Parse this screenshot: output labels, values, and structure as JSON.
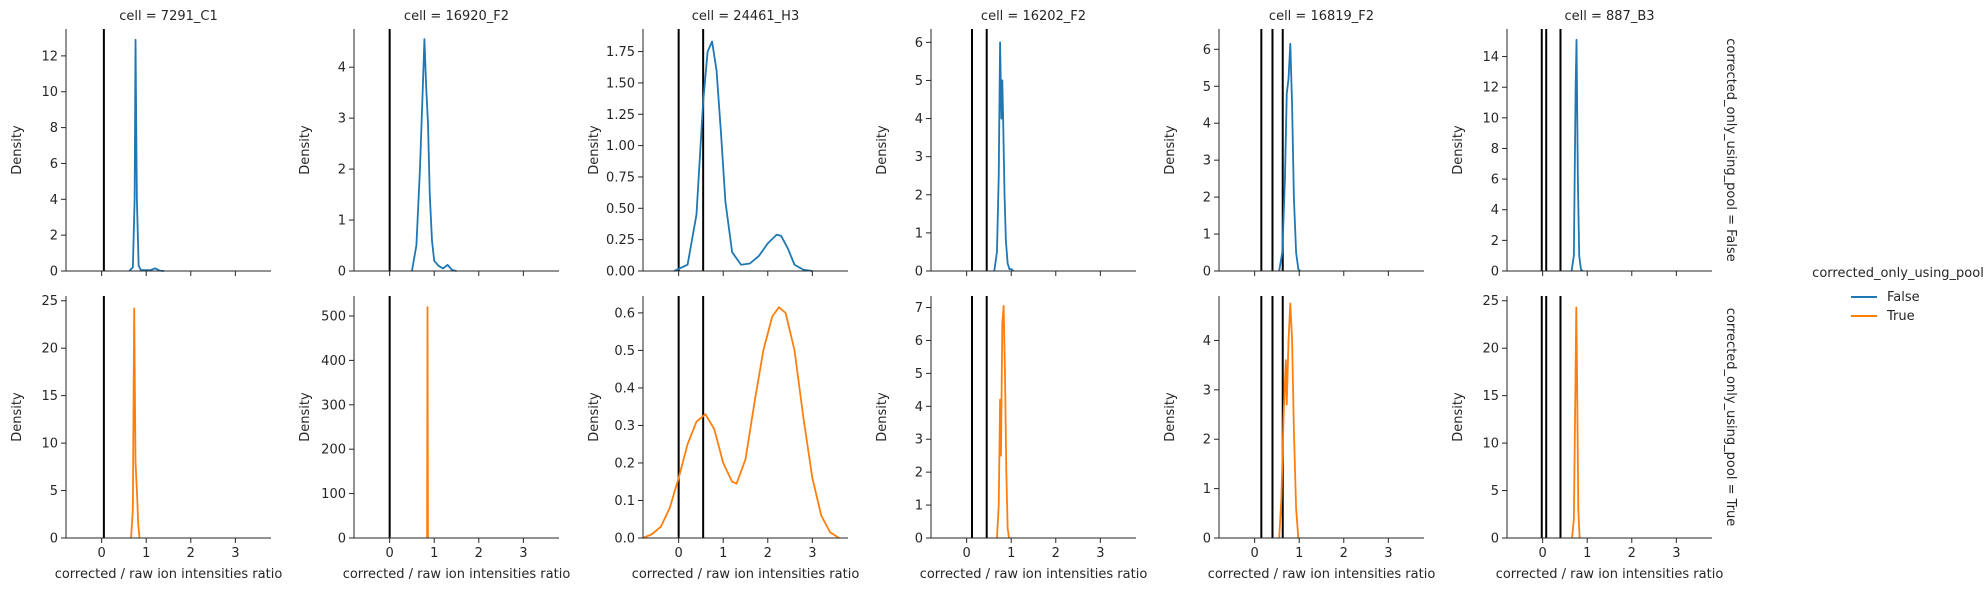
{
  "legend": {
    "title": "corrected_only_using_pool",
    "entries": [
      {
        "label": "False",
        "color": "#1f77b4"
      },
      {
        "label": "True",
        "color": "#ff7f0e"
      }
    ]
  },
  "row_labels": [
    "corrected_only_using_pool = False",
    "corrected_only_using_pool = True"
  ],
  "chart_data": [
    {
      "type": "line",
      "title": "cell = 7291_C1",
      "x_ticks": [
        "0",
        "1",
        "2",
        "3"
      ],
      "xlim": [
        -0.8,
        3.8
      ],
      "vlines": [
        0.05
      ],
      "panels": [
        {
          "ylabel": "Density",
          "ylim": [
            0,
            13.5
          ],
          "y_ticks": [
            0,
            2,
            4,
            6,
            8,
            10,
            12
          ],
          "y_tick_labels": [
            "0",
            "2",
            "4",
            "6",
            "8",
            "10",
            "12"
          ],
          "series": {
            "values": [
              [
                0.62,
                0
              ],
              [
                0.7,
                0.2
              ],
              [
                0.74,
                4
              ],
              [
                0.76,
                12.9
              ],
              [
                0.79,
                4
              ],
              [
                0.83,
                0.3
              ],
              [
                0.88,
                0.05
              ],
              [
                1.1,
                0.05
              ],
              [
                1.2,
                0.15
              ],
              [
                1.3,
                0.02
              ],
              [
                1.4,
                0
              ]
            ]
          }
        },
        {
          "ylabel": "Density",
          "ylim": [
            0,
            25.5
          ],
          "y_ticks": [
            0,
            5,
            10,
            15,
            20,
            25
          ],
          "y_tick_labels": [
            "0",
            "5",
            "10",
            "15",
            "20",
            "25"
          ],
          "series": {
            "values": [
              [
                0.66,
                0
              ],
              [
                0.7,
                3
              ],
              [
                0.73,
                24.2
              ],
              [
                0.76,
                8
              ],
              [
                0.78,
                6
              ],
              [
                0.8,
                4
              ],
              [
                0.82,
                1.5
              ],
              [
                0.85,
                0
              ]
            ]
          }
        }
      ]
    },
    {
      "type": "line",
      "title": "cell = 16920_F2",
      "x_ticks": [
        "0",
        "1",
        "2",
        "3"
      ],
      "xlim": [
        -0.8,
        3.8
      ],
      "vlines": [
        0.0
      ],
      "panels": [
        {
          "ylabel": "Density",
          "ylim": [
            0,
            4.75
          ],
          "y_ticks": [
            0,
            1,
            2,
            3,
            4
          ],
          "y_tick_labels": [
            "0",
            "1",
            "2",
            "3",
            "4"
          ],
          "series": {
            "values": [
              [
                0.5,
                0
              ],
              [
                0.6,
                0.5
              ],
              [
                0.68,
                2
              ],
              [
                0.74,
                3.5
              ],
              [
                0.78,
                4.55
              ],
              [
                0.82,
                3.6
              ],
              [
                0.86,
                2.9
              ],
              [
                0.9,
                1.5
              ],
              [
                0.95,
                0.6
              ],
              [
                1.0,
                0.2
              ],
              [
                1.1,
                0.1
              ],
              [
                1.2,
                0.05
              ],
              [
                1.3,
                0.12
              ],
              [
                1.4,
                0.02
              ],
              [
                1.5,
                0
              ]
            ]
          }
        },
        {
          "ylabel": "Density",
          "ylim": [
            0,
            545
          ],
          "y_ticks": [
            0,
            100,
            200,
            300,
            400,
            500
          ],
          "y_tick_labels": [
            "0",
            "100",
            "200",
            "300",
            "400",
            "500"
          ],
          "series": {
            "values": [
              [
                0.84,
                0
              ],
              [
                0.85,
                520
              ],
              [
                0.86,
                0
              ]
            ]
          }
        }
      ]
    },
    {
      "type": "line",
      "title": "cell = 24461_H3",
      "x_ticks": [
        "0",
        "1",
        "2",
        "3"
      ],
      "xlim": [
        -0.8,
        3.8
      ],
      "vlines": [
        0.0,
        0.55
      ],
      "panels": [
        {
          "ylabel": "Density",
          "ylim": [
            0,
            1.93
          ],
          "y_ticks": [
            0,
            0.25,
            0.5,
            0.75,
            1.0,
            1.25,
            1.5,
            1.75
          ],
          "y_tick_labels": [
            "0.00",
            "0.25",
            "0.50",
            "0.75",
            "1.00",
            "1.25",
            "1.50",
            "1.75"
          ],
          "series": {
            "values": [
              [
                -0.1,
                0
              ],
              [
                0.2,
                0.05
              ],
              [
                0.4,
                0.45
              ],
              [
                0.55,
                1.35
              ],
              [
                0.65,
                1.75
              ],
              [
                0.75,
                1.83
              ],
              [
                0.85,
                1.6
              ],
              [
                0.95,
                1.1
              ],
              [
                1.05,
                0.55
              ],
              [
                1.2,
                0.15
              ],
              [
                1.4,
                0.05
              ],
              [
                1.6,
                0.06
              ],
              [
                1.8,
                0.12
              ],
              [
                2.0,
                0.22
              ],
              [
                2.2,
                0.29
              ],
              [
                2.3,
                0.28
              ],
              [
                2.45,
                0.18
              ],
              [
                2.6,
                0.05
              ],
              [
                2.8,
                0.01
              ],
              [
                3.0,
                0
              ]
            ]
          }
        },
        {
          "ylabel": "Density",
          "ylim": [
            0,
            0.645
          ],
          "y_ticks": [
            0,
            0.1,
            0.2,
            0.3,
            0.4,
            0.5,
            0.6
          ],
          "y_tick_labels": [
            "0.0",
            "0.1",
            "0.2",
            "0.3",
            "0.4",
            "0.5",
            "0.6"
          ],
          "series": {
            "values": [
              [
                -0.8,
                0
              ],
              [
                -0.6,
                0.01
              ],
              [
                -0.4,
                0.03
              ],
              [
                -0.2,
                0.08
              ],
              [
                0.0,
                0.16
              ],
              [
                0.2,
                0.25
              ],
              [
                0.4,
                0.31
              ],
              [
                0.6,
                0.33
              ],
              [
                0.8,
                0.29
              ],
              [
                1.0,
                0.2
              ],
              [
                1.2,
                0.15
              ],
              [
                1.3,
                0.145
              ],
              [
                1.5,
                0.21
              ],
              [
                1.7,
                0.36
              ],
              [
                1.9,
                0.5
              ],
              [
                2.1,
                0.59
              ],
              [
                2.25,
                0.615
              ],
              [
                2.4,
                0.6
              ],
              [
                2.6,
                0.5
              ],
              [
                2.8,
                0.32
              ],
              [
                3.0,
                0.16
              ],
              [
                3.2,
                0.06
              ],
              [
                3.4,
                0.015
              ],
              [
                3.6,
                0
              ]
            ]
          }
        }
      ]
    },
    {
      "type": "line",
      "title": "cell = 16202_F2",
      "x_ticks": [
        "0",
        "1",
        "2",
        "3"
      ],
      "xlim": [
        -0.8,
        3.8
      ],
      "vlines": [
        0.12,
        0.45
      ],
      "panels": [
        {
          "ylabel": "Density",
          "ylim": [
            0,
            6.35
          ],
          "y_ticks": [
            0,
            1,
            2,
            3,
            4,
            5,
            6
          ],
          "y_tick_labels": [
            "0",
            "1",
            "2",
            "3",
            "4",
            "5",
            "6"
          ],
          "series": {
            "values": [
              [
                0.62,
                0
              ],
              [
                0.68,
                0.5
              ],
              [
                0.72,
                2.5
              ],
              [
                0.75,
                6.0
              ],
              [
                0.78,
                4.0
              ],
              [
                0.8,
                5.0
              ],
              [
                0.82,
                3.9
              ],
              [
                0.85,
                2.0
              ],
              [
                0.88,
                0.8
              ],
              [
                0.92,
                0.2
              ],
              [
                0.96,
                0.05
              ],
              [
                1.0,
                0.05
              ],
              [
                1.05,
                0
              ]
            ]
          }
        },
        {
          "ylabel": "Density",
          "ylim": [
            0,
            7.35
          ],
          "y_ticks": [
            0,
            1,
            2,
            3,
            4,
            5,
            6,
            7
          ],
          "y_tick_labels": [
            "0",
            "1",
            "2",
            "3",
            "4",
            "5",
            "6",
            "7"
          ],
          "series": {
            "values": [
              [
                0.68,
                0
              ],
              [
                0.72,
                1
              ],
              [
                0.75,
                4.2
              ],
              [
                0.77,
                2.5
              ],
              [
                0.8,
                6.5
              ],
              [
                0.83,
                7.05
              ],
              [
                0.86,
                5
              ],
              [
                0.89,
                2
              ],
              [
                0.92,
                0.3
              ],
              [
                0.95,
                0
              ]
            ]
          }
        }
      ]
    },
    {
      "type": "line",
      "title": "cell = 16819_F2",
      "x_ticks": [
        "0",
        "1",
        "2",
        "3"
      ],
      "xlim": [
        -0.8,
        3.8
      ],
      "vlines": [
        0.15,
        0.4,
        0.63
      ],
      "panels": [
        {
          "ylabel": "Density",
          "ylim": [
            0,
            6.55
          ],
          "y_ticks": [
            0,
            1,
            2,
            3,
            4,
            5,
            6
          ],
          "y_tick_labels": [
            "0",
            "1",
            "2",
            "3",
            "4",
            "5",
            "6"
          ],
          "series": {
            "values": [
              [
                0.55,
                0
              ],
              [
                0.62,
                0.5
              ],
              [
                0.68,
                2.5
              ],
              [
                0.72,
                4.8
              ],
              [
                0.76,
                5.2
              ],
              [
                0.8,
                6.15
              ],
              [
                0.84,
                4.5
              ],
              [
                0.88,
                2.0
              ],
              [
                0.93,
                0.5
              ],
              [
                0.98,
                0.05
              ],
              [
                1.02,
                0
              ]
            ]
          }
        },
        {
          "ylabel": "Density",
          "ylim": [
            0,
            4.9
          ],
          "y_ticks": [
            0,
            1,
            2,
            3,
            4
          ],
          "y_tick_labels": [
            "0",
            "1",
            "2",
            "3",
            "4"
          ],
          "series": {
            "values": [
              [
                0.55,
                0
              ],
              [
                0.6,
                0.8
              ],
              [
                0.65,
                2.5
              ],
              [
                0.7,
                3.6
              ],
              [
                0.72,
                2.7
              ],
              [
                0.76,
                4.0
              ],
              [
                0.8,
                4.75
              ],
              [
                0.84,
                4.0
              ],
              [
                0.88,
                2.2
              ],
              [
                0.93,
                0.6
              ],
              [
                0.98,
                0
              ]
            ]
          }
        }
      ]
    },
    {
      "type": "line",
      "title": "cell = 887_B3",
      "x_ticks": [
        "0",
        "1",
        "2",
        "3"
      ],
      "xlim": [
        -0.8,
        3.8
      ],
      "vlines": [
        -0.02,
        0.08,
        0.4
      ],
      "panels": [
        {
          "ylabel": "Density",
          "ylim": [
            0,
            15.8
          ],
          "y_ticks": [
            0,
            2,
            4,
            6,
            8,
            10,
            12,
            14
          ],
          "y_tick_labels": [
            "0",
            "2",
            "4",
            "6",
            "8",
            "10",
            "12",
            "14"
          ],
          "series": {
            "values": [
              [
                0.65,
                0
              ],
              [
                0.7,
                1
              ],
              [
                0.74,
                12
              ],
              [
                0.76,
                15.1
              ],
              [
                0.79,
                6
              ],
              [
                0.82,
                1
              ],
              [
                0.86,
                0.1
              ],
              [
                0.9,
                0
              ]
            ]
          }
        },
        {
          "ylabel": "Density",
          "ylim": [
            0,
            25.5
          ],
          "y_ticks": [
            0,
            5,
            10,
            15,
            20,
            25
          ],
          "y_tick_labels": [
            "0",
            "5",
            "10",
            "15",
            "20",
            "25"
          ],
          "series": {
            "values": [
              [
                0.66,
                0
              ],
              [
                0.7,
                2
              ],
              [
                0.74,
                18
              ],
              [
                0.755,
                24.3
              ],
              [
                0.77,
                18
              ],
              [
                0.8,
                3
              ],
              [
                0.83,
                0
              ]
            ]
          }
        }
      ]
    }
  ],
  "xlabel": "corrected / raw ion intensities ratio"
}
